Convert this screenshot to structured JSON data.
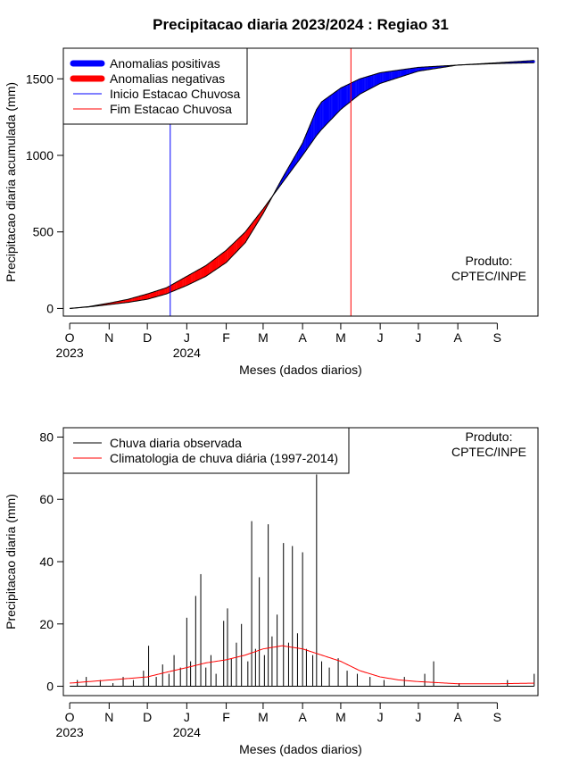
{
  "colors": {
    "positive_anomaly": "#0000ff",
    "negative_anomaly": "#ff0000",
    "observed_line": "#000000",
    "climatology_line": "#ff0000",
    "rainy_start_line": "#0000ff",
    "rainy_end_line": "#ff0000"
  },
  "chart_data": [
    {
      "type": "area",
      "title": "Precipitacao diaria 2023/2024 : Regiao 31",
      "xlabel": "Meses (dados diarios)",
      "ylabel": "Precipitacao diaria acumulada (mm)",
      "x_ticks": [
        "O",
        "N",
        "D",
        "J",
        "F",
        "M",
        "A",
        "M",
        "J",
        "J",
        "A",
        "S"
      ],
      "x_year_labels": [
        "2023",
        "2024"
      ],
      "y_ticks": [
        "0",
        "500",
        "1000",
        "1500"
      ],
      "ylim": [
        -50,
        1700
      ],
      "xlim_days": [
        -5,
        368
      ],
      "legend": [
        {
          "label": "Anomalias positivas",
          "color": "#0000ff",
          "kind": "thick"
        },
        {
          "label": "Anomalias negativas",
          "color": "#ff0000",
          "kind": "thick"
        },
        {
          "label": "Inicio Estacao Chuvosa",
          "color": "#0000ff",
          "kind": "thin"
        },
        {
          "label": "Fim Estacao Chuvosa",
          "color": "#ff0000",
          "kind": "thin"
        }
      ],
      "legend_position": "top-left",
      "annotation": [
        "Produto:",
        "CPTEC/INPE"
      ],
      "rainy_season_start": "2023-12-19",
      "rainy_season_end": "2024-05-09",
      "observed_cumulative": [
        {
          "date": "2023-10-01",
          "value": 0
        },
        {
          "date": "2023-10-16",
          "value": 10
        },
        {
          "date": "2023-11-01",
          "value": 25
        },
        {
          "date": "2023-11-16",
          "value": 40
        },
        {
          "date": "2023-12-01",
          "value": 60
        },
        {
          "date": "2023-12-16",
          "value": 95
        },
        {
          "date": "2024-01-01",
          "value": 150
        },
        {
          "date": "2024-01-16",
          "value": 210
        },
        {
          "date": "2024-02-01",
          "value": 300
        },
        {
          "date": "2024-02-16",
          "value": 430
        },
        {
          "date": "2024-03-01",
          "value": 620
        },
        {
          "date": "2024-03-16",
          "value": 850
        },
        {
          "date": "2024-04-01",
          "value": 1080
        },
        {
          "date": "2024-04-12",
          "value": 1300
        },
        {
          "date": "2024-04-16",
          "value": 1350
        },
        {
          "date": "2024-05-01",
          "value": 1440
        },
        {
          "date": "2024-05-16",
          "value": 1500
        },
        {
          "date": "2024-06-01",
          "value": 1540
        },
        {
          "date": "2024-07-01",
          "value": 1575
        },
        {
          "date": "2024-08-01",
          "value": 1590
        },
        {
          "date": "2024-09-01",
          "value": 1605
        },
        {
          "date": "2024-09-30",
          "value": 1620
        }
      ],
      "climatology_cumulative": [
        {
          "date": "2023-10-01",
          "value": 0
        },
        {
          "date": "2023-10-16",
          "value": 12
        },
        {
          "date": "2023-11-01",
          "value": 35
        },
        {
          "date": "2023-11-16",
          "value": 60
        },
        {
          "date": "2023-12-01",
          "value": 95
        },
        {
          "date": "2023-12-16",
          "value": 135
        },
        {
          "date": "2024-01-01",
          "value": 210
        },
        {
          "date": "2024-01-16",
          "value": 280
        },
        {
          "date": "2024-02-01",
          "value": 380
        },
        {
          "date": "2024-02-16",
          "value": 500
        },
        {
          "date": "2024-03-01",
          "value": 650
        },
        {
          "date": "2024-03-16",
          "value": 820
        },
        {
          "date": "2024-04-01",
          "value": 1000
        },
        {
          "date": "2024-04-12",
          "value": 1130
        },
        {
          "date": "2024-04-16",
          "value": 1170
        },
        {
          "date": "2024-05-01",
          "value": 1300
        },
        {
          "date": "2024-05-16",
          "value": 1400
        },
        {
          "date": "2024-06-01",
          "value": 1470
        },
        {
          "date": "2024-07-01",
          "value": 1550
        },
        {
          "date": "2024-08-01",
          "value": 1590
        },
        {
          "date": "2024-09-01",
          "value": 1600
        },
        {
          "date": "2024-09-30",
          "value": 1605
        }
      ]
    },
    {
      "type": "line",
      "xlabel": "Meses (dados diarios)",
      "ylabel": "Precipitacao diaria (mm)",
      "x_ticks": [
        "O",
        "N",
        "D",
        "J",
        "F",
        "M",
        "A",
        "M",
        "J",
        "J",
        "A",
        "S"
      ],
      "x_year_labels": [
        "2023",
        "2024"
      ],
      "y_ticks": [
        "0",
        "20",
        "40",
        "60",
        "80"
      ],
      "ylim": [
        -3,
        83
      ],
      "xlim_days": [
        -5,
        368
      ],
      "legend": [
        {
          "label": "Chuva diaria observada",
          "color": "#000000"
        },
        {
          "label": "Climatologia de chuva diária (1997-2014)",
          "color": "#ff0000"
        }
      ],
      "legend_position": "top-left",
      "annotation": [
        "Produto:",
        "CPTEC/INPE"
      ],
      "series": [
        {
          "name": "Chuva diaria observada",
          "points": [
            {
              "date": "2023-10-07",
              "value": 2
            },
            {
              "date": "2023-10-14",
              "value": 3
            },
            {
              "date": "2023-10-25",
              "value": 2
            },
            {
              "date": "2023-11-04",
              "value": 1
            },
            {
              "date": "2023-11-12",
              "value": 3
            },
            {
              "date": "2023-11-20",
              "value": 2
            },
            {
              "date": "2023-11-28",
              "value": 5
            },
            {
              "date": "2023-12-02",
              "value": 13
            },
            {
              "date": "2023-12-08",
              "value": 3
            },
            {
              "date": "2023-12-13",
              "value": 7
            },
            {
              "date": "2023-12-18",
              "value": 4
            },
            {
              "date": "2023-12-22",
              "value": 10
            },
            {
              "date": "2023-12-27",
              "value": 6
            },
            {
              "date": "2024-01-01",
              "value": 22
            },
            {
              "date": "2024-01-04",
              "value": 8
            },
            {
              "date": "2024-01-08",
              "value": 29
            },
            {
              "date": "2024-01-12",
              "value": 36
            },
            {
              "date": "2024-01-16",
              "value": 6
            },
            {
              "date": "2024-01-20",
              "value": 10
            },
            {
              "date": "2024-01-24",
              "value": 4
            },
            {
              "date": "2024-01-30",
              "value": 21
            },
            {
              "date": "2024-02-02",
              "value": 25
            },
            {
              "date": "2024-02-05",
              "value": 9
            },
            {
              "date": "2024-02-09",
              "value": 14
            },
            {
              "date": "2024-02-13",
              "value": 20
            },
            {
              "date": "2024-02-18",
              "value": 8
            },
            {
              "date": "2024-02-21",
              "value": 53
            },
            {
              "date": "2024-02-24",
              "value": 12
            },
            {
              "date": "2024-02-27",
              "value": 35
            },
            {
              "date": "2024-03-02",
              "value": 10
            },
            {
              "date": "2024-03-05",
              "value": 52
            },
            {
              "date": "2024-03-08",
              "value": 16
            },
            {
              "date": "2024-03-12",
              "value": 23
            },
            {
              "date": "2024-03-17",
              "value": 46
            },
            {
              "date": "2024-03-21",
              "value": 14
            },
            {
              "date": "2024-03-24",
              "value": 45
            },
            {
              "date": "2024-03-28",
              "value": 17
            },
            {
              "date": "2024-04-01",
              "value": 43
            },
            {
              "date": "2024-04-04",
              "value": 12
            },
            {
              "date": "2024-04-09",
              "value": 10
            },
            {
              "date": "2024-04-12",
              "value": 68
            },
            {
              "date": "2024-04-16",
              "value": 8
            },
            {
              "date": "2024-04-22",
              "value": 6
            },
            {
              "date": "2024-04-29",
              "value": 9
            },
            {
              "date": "2024-05-06",
              "value": 5
            },
            {
              "date": "2024-05-14",
              "value": 4
            },
            {
              "date": "2024-05-24",
              "value": 3
            },
            {
              "date": "2024-06-04",
              "value": 2
            },
            {
              "date": "2024-06-20",
              "value": 3
            },
            {
              "date": "2024-07-06",
              "value": 4
            },
            {
              "date": "2024-07-13",
              "value": 8
            },
            {
              "date": "2024-08-02",
              "value": 1
            },
            {
              "date": "2024-09-09",
              "value": 2
            },
            {
              "date": "2024-09-30",
              "value": 4
            }
          ]
        },
        {
          "name": "Climatologia de chuva diária (1997-2014)",
          "points": [
            {
              "date": "2023-10-01",
              "value": 1
            },
            {
              "date": "2023-10-16",
              "value": 1.5
            },
            {
              "date": "2023-11-01",
              "value": 2
            },
            {
              "date": "2023-11-16",
              "value": 2.5
            },
            {
              "date": "2023-12-01",
              "value": 3
            },
            {
              "date": "2023-12-16",
              "value": 4.5
            },
            {
              "date": "2024-01-01",
              "value": 6
            },
            {
              "date": "2024-01-16",
              "value": 7.5
            },
            {
              "date": "2024-02-01",
              "value": 8.5
            },
            {
              "date": "2024-02-16",
              "value": 10
            },
            {
              "date": "2024-03-01",
              "value": 12
            },
            {
              "date": "2024-03-16",
              "value": 13
            },
            {
              "date": "2024-04-01",
              "value": 12
            },
            {
              "date": "2024-04-16",
              "value": 10
            },
            {
              "date": "2024-05-01",
              "value": 8
            },
            {
              "date": "2024-05-16",
              "value": 5
            },
            {
              "date": "2024-06-01",
              "value": 3
            },
            {
              "date": "2024-06-16",
              "value": 2
            },
            {
              "date": "2024-07-01",
              "value": 1.5
            },
            {
              "date": "2024-08-01",
              "value": 0.8
            },
            {
              "date": "2024-09-01",
              "value": 0.8
            },
            {
              "date": "2024-09-30",
              "value": 1
            }
          ]
        }
      ]
    }
  ]
}
